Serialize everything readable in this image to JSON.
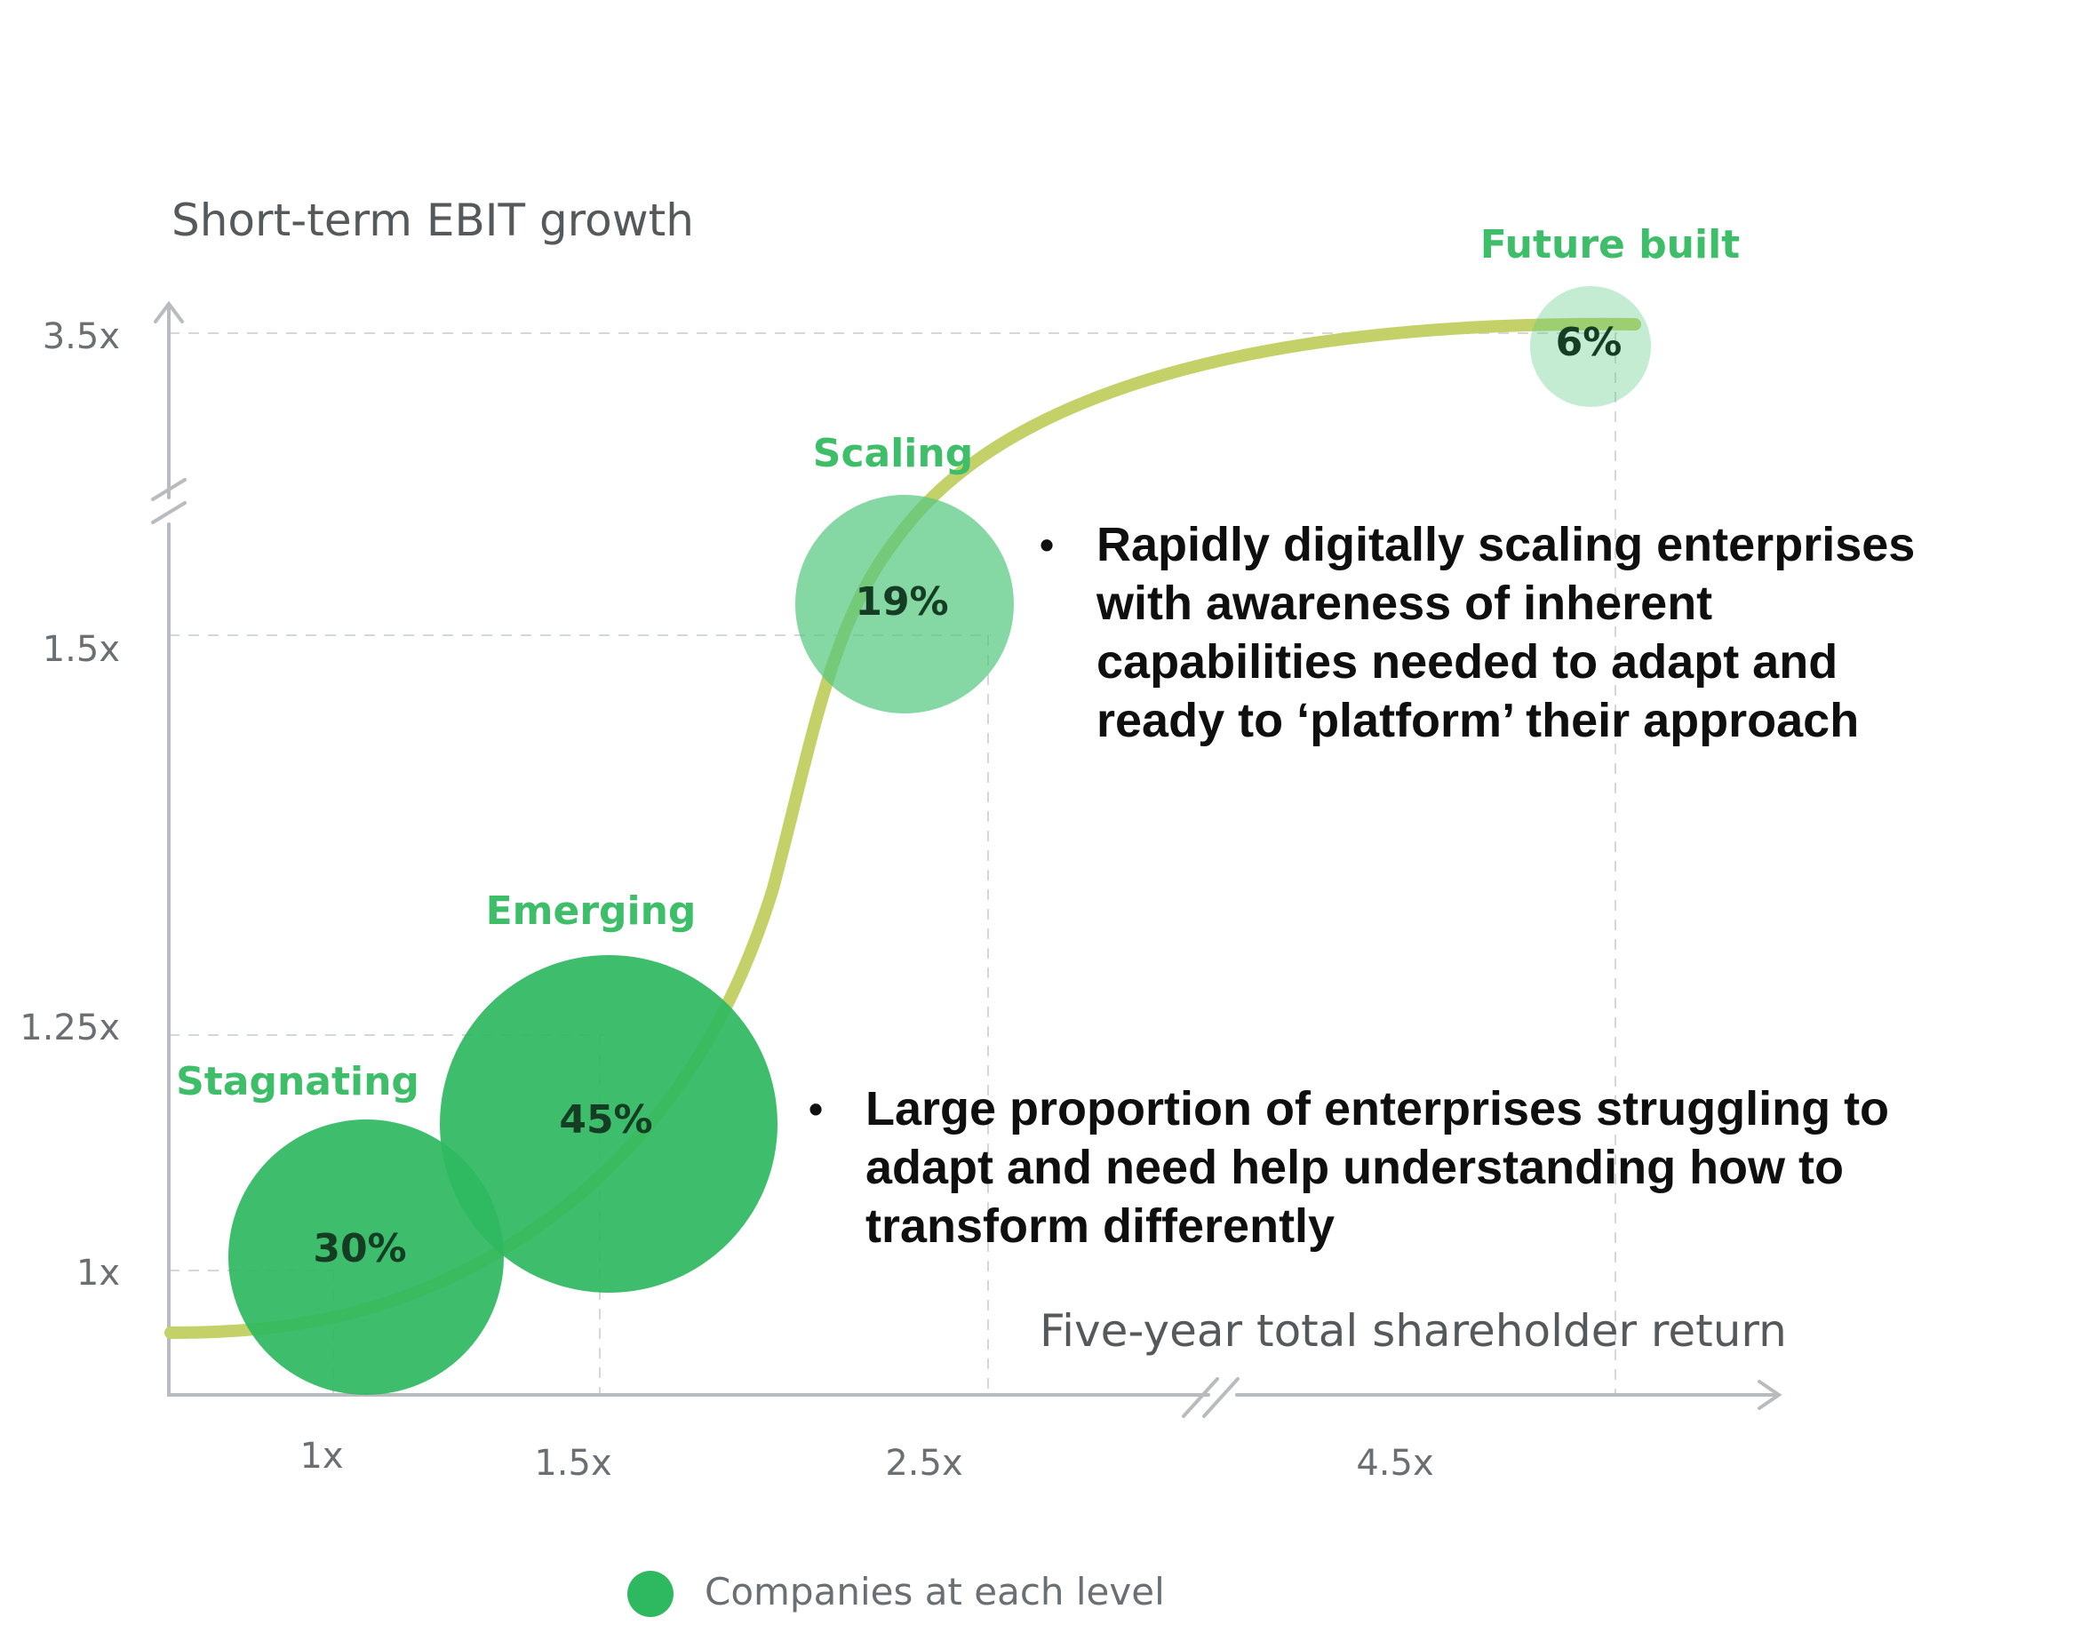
{
  "chart_data": {
    "type": "bubble",
    "ylabel": "Short-term EBIT growth",
    "xlabel": "Five-year total shareholder return",
    "x_ticks": [
      "1x",
      "1.5x",
      "2.5x",
      "4.5x"
    ],
    "y_ticks": [
      "3.5x",
      "1.5x",
      "1.25x",
      "1x"
    ],
    "axis_breaks": [
      "y between 1.5x and 3.5x",
      "x between 2.5x and 4.5x"
    ],
    "points": [
      {
        "label": "Stagnating",
        "value_label": "30%",
        "share": 30,
        "x": 1.0,
        "y": 1.0
      },
      {
        "label": "Emerging",
        "value_label": "45%",
        "share": 45,
        "x": 1.5,
        "y": 1.25
      },
      {
        "label": "Scaling",
        "value_label": "19%",
        "share": 19,
        "x": 2.5,
        "y": 1.5
      },
      {
        "label": "Future built",
        "value_label": "6%",
        "share": 6,
        "x": 4.5,
        "y": 3.5
      }
    ],
    "legend": "Companies at each level",
    "legend_position": "bottom"
  },
  "annotations": [
    "Rapidly digitally scaling enterprises with awareness of inherent capabilities needed to adapt and ready to ‘platform’ their approach",
    "Large proportion of enterprises struggling to adapt and need help understanding how to transform differently"
  ],
  "colors": {
    "bubble": "#2eb85f",
    "bubble_light": "#56c87f",
    "stage_label": "#3fbe6a",
    "curve": "#c4d168",
    "axis": "#b8bcbf",
    "grid": "#d4d8db"
  }
}
